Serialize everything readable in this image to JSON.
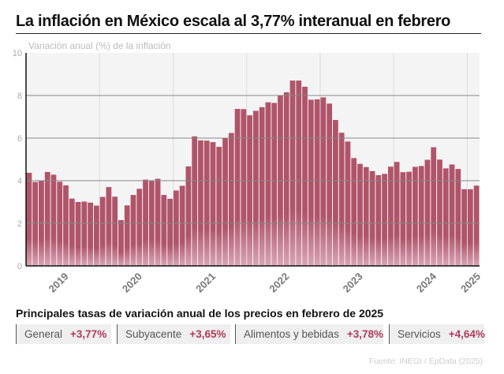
{
  "title": "La inflación en México escala al 3,77% interanual en febrero",
  "subtitle": "Variación anual (%) de la inflación",
  "chart_data": {
    "type": "bar",
    "title": "La inflación en México escala al 3,77% interanual en febrero",
    "ylabel": "Variación anual (%) de la inflación",
    "ylim": [
      0,
      10
    ],
    "yticks": [
      0,
      2,
      4,
      6,
      8,
      10
    ],
    "xticks": [
      "2019",
      "2020",
      "2021",
      "2022",
      "2023",
      "2024",
      "2025"
    ],
    "grid": true,
    "bar_color": "#b0546a",
    "start": "2019-01",
    "end": "2025-02",
    "frequency": "monthly",
    "values": [
      4.37,
      3.94,
      4.0,
      4.41,
      4.28,
      3.95,
      3.78,
      3.16,
      3.0,
      3.02,
      2.97,
      2.83,
      3.24,
      3.7,
      3.25,
      2.15,
      2.84,
      3.33,
      3.62,
      4.05,
      4.01,
      4.09,
      3.33,
      3.15,
      3.54,
      3.76,
      4.67,
      6.08,
      5.89,
      5.88,
      5.81,
      5.59,
      6.0,
      6.24,
      7.37,
      7.36,
      7.07,
      7.28,
      7.45,
      7.68,
      7.65,
      7.99,
      8.15,
      8.7,
      8.7,
      8.41,
      7.8,
      7.82,
      7.91,
      7.62,
      6.85,
      6.25,
      5.84,
      5.06,
      4.79,
      4.64,
      4.45,
      4.26,
      4.32,
      4.66,
      4.88,
      4.4,
      4.42,
      4.65,
      4.69,
      4.98,
      5.57,
      4.99,
      4.58,
      4.76,
      4.55,
      3.6,
      3.6,
      3.77
    ]
  },
  "rates": {
    "title": "Principales tasas de variación anual de los precios en febrero de 2025",
    "items": [
      {
        "label": "General",
        "value": "+3,77%"
      },
      {
        "label": "Subyacente",
        "value": "+3,65%"
      },
      {
        "label": "Alimentos y bebidas",
        "value": "+3,78%"
      },
      {
        "label": "Servicios",
        "value": "+4,64%"
      }
    ],
    "accent": "#b03a5b"
  },
  "source": "Fuente: INEGI / EpData (2025)"
}
